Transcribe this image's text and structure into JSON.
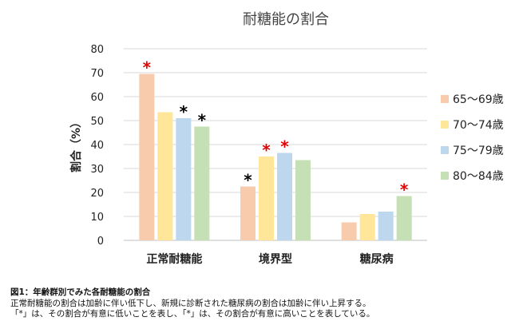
{
  "chart_data": {
    "type": "bar",
    "title": "耐糖能の割合",
    "ylabel": "割合（%）",
    "xlabel": "",
    "ylim": [
      0,
      80
    ],
    "y_ticks": [
      0,
      10,
      20,
      30,
      40,
      50,
      60,
      70,
      80
    ],
    "grid": true,
    "legend_position": "right",
    "categories": [
      "正常耐糖能",
      "境界型",
      "糖尿病"
    ],
    "series": [
      {
        "name": "65～69歳",
        "color": "#f8cbad",
        "values": [
          69.5,
          22.5,
          7.5
        ],
        "markers": [
          "red",
          "black",
          ""
        ]
      },
      {
        "name": "70～74歳",
        "color": "#ffe699",
        "values": [
          53.5,
          35,
          11
        ],
        "markers": [
          "",
          "red",
          ""
        ]
      },
      {
        "name": "75～79歳",
        "color": "#bdd7ee",
        "values": [
          51,
          36.5,
          12
        ],
        "markers": [
          "black",
          "red",
          ""
        ]
      },
      {
        "name": "80～84歳",
        "color": "#c5e0b4",
        "values": [
          47.5,
          33.5,
          18.5
        ],
        "markers": [
          "black",
          "",
          "red"
        ]
      }
    ],
    "marker_symbol": "*",
    "marker_colors": {
      "red": "#e00000",
      "black": "#000000"
    }
  },
  "caption": {
    "title": "図1：年齢群別でみた各耐糖能の割合",
    "line1": "正常耐糖能の割合は加齢に伴い低下し、新規に診断された糖尿病の割合は加齢に伴い上昇する。",
    "line2": "「*」は、その割合が有意に低いことを表し、「*」は、その割合が有意に高いことを表している。"
  }
}
